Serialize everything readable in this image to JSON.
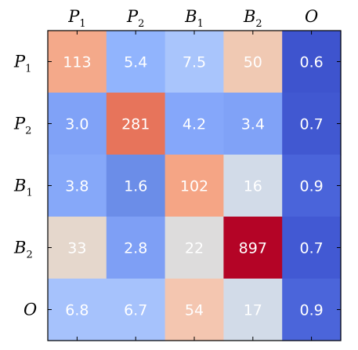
{
  "chart_data": {
    "type": "heatmap",
    "x_categories": [
      {
        "base": "P",
        "sub": "1"
      },
      {
        "base": "P",
        "sub": "2"
      },
      {
        "base": "B",
        "sub": "1"
      },
      {
        "base": "B",
        "sub": "2"
      },
      {
        "base": "O",
        "sub": ""
      }
    ],
    "y_categories": [
      {
        "base": "P",
        "sub": "1"
      },
      {
        "base": "P",
        "sub": "2"
      },
      {
        "base": "B",
        "sub": "1"
      },
      {
        "base": "B",
        "sub": "2"
      },
      {
        "base": "O",
        "sub": ""
      }
    ],
    "values": [
      [
        "113",
        "5.4",
        "7.5",
        "50",
        "0.6"
      ],
      [
        "3.0",
        "281",
        "4.2",
        "3.4",
        "0.7"
      ],
      [
        "3.8",
        "1.6",
        "102",
        "16",
        "0.9"
      ],
      [
        "33",
        "2.8",
        "22",
        "897",
        "0.7"
      ],
      [
        "6.8",
        "6.7",
        "54",
        "17",
        "0.9"
      ]
    ],
    "cell_colors": [
      [
        "#f4a98a",
        "#91b4fd",
        "#a9c5fc",
        "#f0c9b3",
        "#3e54ce"
      ],
      [
        "#80a2f7",
        "#e7745b",
        "#85a7fa",
        "#80a2f7",
        "#4158d1"
      ],
      [
        "#86a8f9",
        "#6b8de8",
        "#f5a585",
        "#d2dbe8",
        "#4a64da"
      ],
      [
        "#e5d7cc",
        "#7e9ff5",
        "#dddcdc",
        "#b40426",
        "#4259d3"
      ],
      [
        "#a6c2fc",
        "#a6c2fc",
        "#f4c6b0",
        "#d2dbe8",
        "#4b65da"
      ]
    ],
    "grid": false,
    "legend": "none"
  }
}
